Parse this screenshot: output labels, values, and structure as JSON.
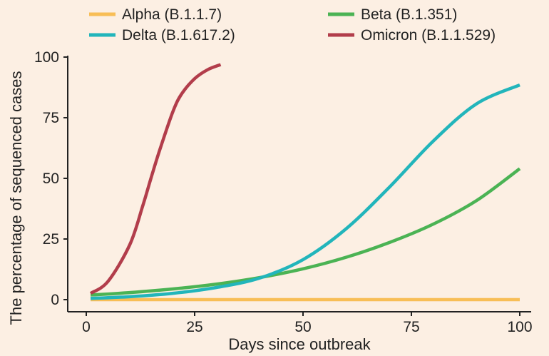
{
  "chart_data": {
    "type": "line",
    "title": "",
    "xlabel": "Days since outbreak",
    "ylabel": "The percentage of sequenced cases",
    "xlim": [
      0,
      100
    ],
    "ylim": [
      0,
      100
    ],
    "x_ticks": [
      0,
      25,
      50,
      75,
      100
    ],
    "y_ticks": [
      0,
      25,
      50,
      75,
      100
    ],
    "grid": false,
    "legend_position": "top",
    "series": [
      {
        "name": "Alpha (B.1.1.7)",
        "color": "#f8be56",
        "x": [
          1,
          10,
          20,
          30,
          40,
          50,
          60,
          70,
          80,
          90,
          100
        ],
        "y": [
          0,
          0,
          0,
          0,
          0,
          0,
          0,
          0,
          0,
          0,
          0
        ]
      },
      {
        "name": "Beta (B.1.351)",
        "color": "#4bb354",
        "x": [
          1,
          10,
          20,
          30,
          40,
          50,
          60,
          70,
          80,
          90,
          100
        ],
        "y": [
          1.9,
          2.9,
          4.4,
          6.4,
          9.1,
          12.7,
          17.5,
          23.6,
          31.1,
          40.8,
          54
        ]
      },
      {
        "name": "Delta (B.1.617.2)",
        "color": "#22b5bb",
        "x": [
          1,
          10,
          20,
          30,
          40,
          50,
          60,
          70,
          80,
          90,
          100
        ],
        "y": [
          0.5,
          1.2,
          2.6,
          5.0,
          8.9,
          16.5,
          29.3,
          46.5,
          65.3,
          80.7,
          88.5
        ]
      },
      {
        "name": "Omicron (B.1.1.529)",
        "color": "#b23d4b",
        "x": [
          1,
          5,
          10,
          13,
          15,
          17,
          20,
          22,
          25,
          28,
          31
        ],
        "y": [
          2.6,
          7.5,
          22.5,
          38.5,
          50.5,
          62,
          77.6,
          84.8,
          91.1,
          94.8,
          96.9
        ]
      }
    ]
  }
}
